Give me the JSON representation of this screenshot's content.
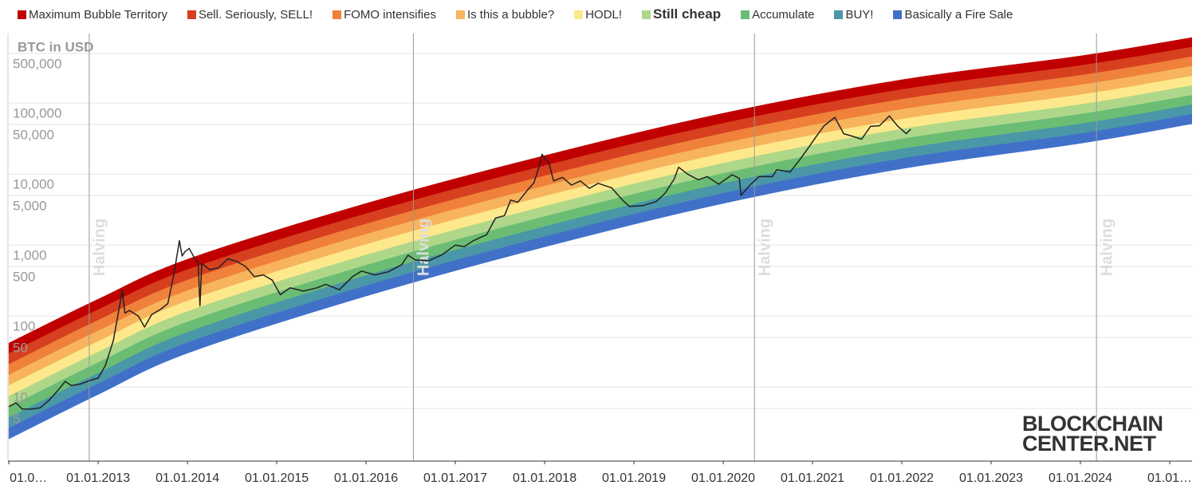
{
  "chart_data": {
    "type": "rainbow",
    "y_axis_title": "BTC in USD",
    "ylog": true,
    "grid": true,
    "ylim": [
      0.906,
      955000
    ],
    "yticks": [
      5,
      10,
      50,
      100,
      500,
      {
        "value": 1000,
        "label": "1,000"
      },
      {
        "value": 5000,
        "label": "5,000"
      },
      {
        "value": 10000,
        "label": "10,000"
      },
      {
        "value": 50000,
        "label": "50,000"
      },
      {
        "value": 100000,
        "label": "100,000"
      },
      {
        "value": 500000,
        "label": "500,000"
      }
    ],
    "xlim": [
      2011.99,
      2025.25
    ],
    "xticks": [
      {
        "value": 2012,
        "label": "01.0…"
      },
      {
        "value": 2013,
        "label": "01.01.2013"
      },
      {
        "value": 2014,
        "label": "01.01.2014"
      },
      {
        "value": 2015,
        "label": "01.01.2015"
      },
      {
        "value": 2016,
        "label": "01.01.2016"
      },
      {
        "value": 2017,
        "label": "01.01.2017"
      },
      {
        "value": 2018,
        "label": "01.01.2018"
      },
      {
        "value": 2019,
        "label": "01.01.2019"
      },
      {
        "value": 2020,
        "label": "01.01.2020"
      },
      {
        "value": 2021,
        "label": "01.01.2021"
      },
      {
        "value": 2022,
        "label": "01.01.2022"
      },
      {
        "value": 2023,
        "label": "01.01.2023"
      },
      {
        "value": 2024,
        "label": "01.01.2024"
      },
      {
        "value": 2025,
        "label": "01.01…"
      }
    ],
    "x": [
      2012,
      2013,
      2014,
      2016,
      2018,
      2020,
      2022,
      2024,
      2025.25
    ],
    "series": [
      {
        "name": "Maximum Bubble Territory",
        "color": "#c00000",
        "values": [
          41.7,
          173,
          631,
          3860,
          18200,
          71900,
          213000,
          462000,
          838000
        ]
      },
      {
        "name": "Sell. Seriously, SELL!",
        "color": "#d6401f",
        "values": [
          29.6,
          123,
          450,
          2760,
          13100,
          51900,
          155000,
          338000,
          614000
        ]
      },
      {
        "name": "FOMO intensifies",
        "color": "#f0813a",
        "values": [
          20.9,
          87.5,
          321,
          1980,
          9420,
          37500,
          113000,
          246000,
          450000
        ]
      },
      {
        "name": "Is this a bubble?",
        "color": "#f7b45d",
        "values": [
          14.8,
          61.8,
          228,
          1420,
          6780,
          27100,
          81400,
          180000,
          330000
        ]
      },
      {
        "name": "HODL!",
        "color": "#fde98b",
        "values": [
          10.5,
          43.9,
          163,
          1020,
          4870,
          19600,
          59200,
          131000,
          241000
        ]
      },
      {
        "name": "Still cheap",
        "color": "#afd78a",
        "bold": true,
        "values": [
          7.39,
          31.1,
          116,
          725,
          3510,
          14200,
          43000,
          95600,
          177000
        ]
      },
      {
        "name": "Accumulate",
        "color": "#6bbd74",
        "values": [
          5.25,
          22.1,
          82.7,
          520,
          2520,
          10200,
          31200,
          69800,
          129000
        ]
      },
      {
        "name": "BUY!",
        "color": "#4a97a8",
        "values": [
          3.72,
          15.7,
          59.1,
          373,
          1820,
          7390,
          22600,
          50900,
          94900
        ]
      },
      {
        "name": "Basically a Fire Sale",
        "color": "#4170c8",
        "values": [
          2.63,
          11.1,
          42.1,
          267,
          1310,
          5350,
          16500,
          37100,
          69800
        ]
      }
    ],
    "base": [
      1.86,
      7.86,
      30.0,
      191,
      942,
      3860,
      11900,
      27100,
      51100
    ],
    "price": {
      "color": "#222222",
      "x": [
        2012.0,
        2012.08,
        2012.15,
        2012.25,
        2012.35,
        2012.45,
        2012.55,
        2012.63,
        2012.7,
        2012.8,
        2012.9,
        2013.0,
        2013.08,
        2013.17,
        2013.24,
        2013.27,
        2013.3,
        2013.35,
        2013.45,
        2013.52,
        2013.6,
        2013.7,
        2013.78,
        2013.85,
        2013.91,
        2013.94,
        2013.97,
        2014.02,
        2014.08,
        2014.12,
        2014.14,
        2014.16,
        2014.25,
        2014.35,
        2014.45,
        2014.55,
        2014.65,
        2014.75,
        2014.85,
        2014.95,
        2015.04,
        2015.15,
        2015.3,
        2015.45,
        2015.55,
        2015.7,
        2015.85,
        2015.95,
        2016.1,
        2016.25,
        2016.4,
        2016.47,
        2016.55,
        2016.7,
        2016.85,
        2017.0,
        2017.1,
        2017.2,
        2017.35,
        2017.45,
        2017.55,
        2017.62,
        2017.7,
        2017.8,
        2017.88,
        2017.94,
        2017.97,
        2018.05,
        2018.1,
        2018.2,
        2018.3,
        2018.4,
        2018.5,
        2018.6,
        2018.75,
        2018.88,
        2018.95,
        2019.1,
        2019.25,
        2019.35,
        2019.45,
        2019.5,
        2019.6,
        2019.72,
        2019.82,
        2019.95,
        2020.1,
        2020.18,
        2020.2,
        2020.3,
        2020.4,
        2020.55,
        2020.6,
        2020.75,
        2020.85,
        2020.95,
        2021.05,
        2021.13,
        2021.25,
        2021.35,
        2021.45,
        2021.55,
        2021.65,
        2021.75,
        2021.86,
        2021.95,
        2022.05,
        2022.1
      ],
      "values": [
        5.3,
        6.0,
        4.9,
        4.9,
        5.1,
        6.5,
        9.0,
        12.0,
        10.5,
        11.0,
        12.3,
        13.4,
        20,
        45,
        140,
        230,
        110,
        120,
        100,
        70,
        105,
        125,
        150,
        400,
        1150,
        700,
        800,
        900,
        650,
        560,
        140,
        550,
        450,
        480,
        640,
        590,
        500,
        360,
        380,
        320,
        200,
        250,
        225,
        250,
        280,
        235,
        360,
        430,
        380,
        420,
        530,
        720,
        620,
        600,
        730,
        1000,
        950,
        1150,
        1400,
        2400,
        2600,
        4300,
        4000,
        5800,
        7500,
        13000,
        19000,
        14000,
        8000,
        9000,
        7000,
        8000,
        6300,
        7400,
        6400,
        4200,
        3500,
        3600,
        4100,
        5400,
        8500,
        12500,
        10000,
        8300,
        9200,
        7200,
        9800,
        8700,
        5000,
        7000,
        9200,
        9200,
        11500,
        10700,
        15500,
        23000,
        35000,
        48000,
        63000,
        37000,
        34000,
        31000,
        47000,
        48000,
        66000,
        48000,
        37000,
        43000
      ]
    },
    "halvings": [
      {
        "x": 2012.9,
        "label": "Halving"
      },
      {
        "x": 2016.53,
        "label": "Halving"
      },
      {
        "x": 2020.35,
        "label": "Halving"
      },
      {
        "x": 2024.18,
        "label": "Halving"
      }
    ],
    "watermark": {
      "line1": "BLOCKCHAIN",
      "line2": "CENTER.NET"
    }
  }
}
